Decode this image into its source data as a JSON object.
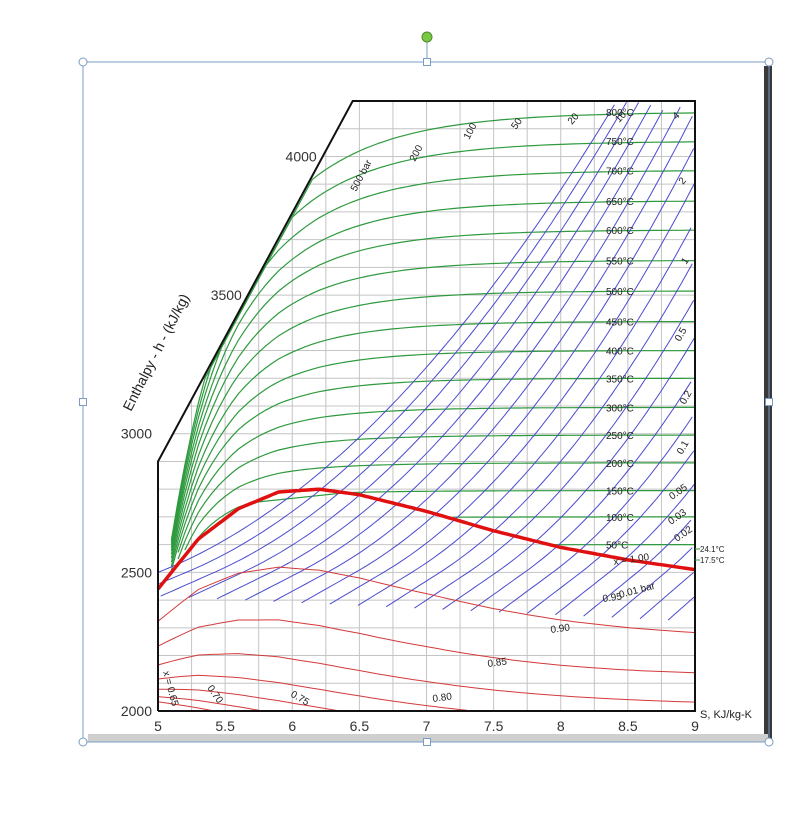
{
  "chart_data": {
    "type": "line",
    "title": "",
    "xlabel": "S, KJ/kg-K",
    "ylabel": "Enthalpy - h - (kJ/kg)",
    "xlim": [
      5,
      9
    ],
    "ylim": [
      2000,
      4200
    ],
    "x_ticks": [
      "5",
      "5.5",
      "6",
      "6.5",
      "7",
      "7.5",
      "8",
      "8.5",
      "9"
    ],
    "y_ticks": [
      "2000",
      "2500",
      "3000",
      "3500",
      "4000"
    ],
    "grid": true,
    "colors": {
      "isobar": "#4b4bd0",
      "isotherm": "#2e9a3e",
      "quality": "#d33a3a",
      "saturation": "#e01010",
      "frame": "#111111"
    },
    "isotherms": {
      "labels": [
        "800°C",
        "750°C",
        "700°C",
        "650°C",
        "600°C",
        "550°C",
        "500°C",
        "450°C",
        "400°C",
        "350°C",
        "300°C",
        "250°C",
        "200°C",
        "150°C",
        "100°C",
        "50°C"
      ],
      "temps": [
        800,
        750,
        700,
        650,
        600,
        550,
        500,
        450,
        400,
        350,
        300,
        250,
        200,
        150,
        100,
        50
      ],
      "plateau_h": [
        4160,
        4055,
        3950,
        3840,
        3735,
        3625,
        3515,
        3405,
        3300,
        3200,
        3095,
        2995,
        2895,
        2795,
        2700,
        2600
      ]
    },
    "isobars": {
      "labels": [
        "500 bar",
        "200",
        "100",
        "50",
        "20",
        "10",
        "4",
        "2",
        "1",
        "0.5",
        "0.2",
        "0.1",
        "0.05",
        "0.03",
        "0.02",
        "0.01 bar"
      ],
      "pressures_bar": [
        500,
        200,
        100,
        50,
        20,
        10,
        4,
        2,
        1,
        0.5,
        0.2,
        0.1,
        0.05,
        0.03,
        0.02,
        0.01
      ]
    },
    "saturation_curve": {
      "label": "x = 1.00",
      "x": [
        5.0,
        5.3,
        5.6,
        5.9,
        6.2,
        6.5,
        7.0,
        7.5,
        8.0,
        8.5,
        9.0
      ],
      "y": [
        2440,
        2620,
        2730,
        2790,
        2800,
        2780,
        2720,
        2650,
        2590,
        2545,
        2510
      ]
    },
    "quality_lines": {
      "labels": [
        "0.95",
        "0.90",
        "0.85",
        "0.80",
        "0.75",
        "0.70",
        "x = 0.65"
      ],
      "values": [
        0.95,
        0.9,
        0.85,
        0.8,
        0.75,
        0.7,
        0.65
      ]
    },
    "side_labels": [
      "24.1°C",
      "17.5°C"
    ]
  }
}
